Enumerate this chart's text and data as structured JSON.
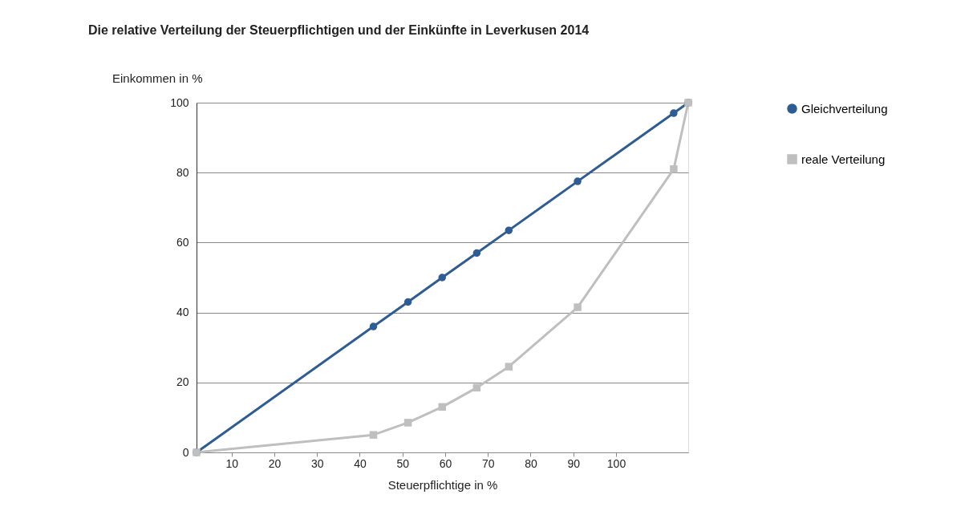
{
  "chart_data": {
    "type": "line",
    "title": "Die relative Verteilung der Steuerpflichtigen und der Einkünfte  in Leverkusen 2014",
    "xlabel": "Steuerpflichtige  in %",
    "ylabel": "Einkommen in %",
    "x": [
      1.8,
      43.2,
      51.3,
      59.3,
      67.4,
      74.9,
      91,
      113.5,
      116.9
    ],
    "series": [
      {
        "name": "Gleichverteilung",
        "color": "#2e5c94",
        "marker": "circle",
        "values": [
          0,
          36,
          43,
          50,
          57,
          63.5,
          77.5,
          97,
          100
        ]
      },
      {
        "name": "reale Verteilung",
        "color": "#bfbfbf",
        "marker": "square",
        "values": [
          0,
          5,
          8.5,
          13,
          18.5,
          24.5,
          41.5,
          81,
          100
        ]
      }
    ],
    "xlim": [
      1.8,
      116.9
    ],
    "xticks": [
      10,
      20,
      30,
      40,
      50,
      60,
      70,
      80,
      90,
      100
    ],
    "ylim": [
      0,
      100
    ],
    "yticks": [
      0,
      20,
      40,
      60,
      80,
      100
    ],
    "grid": "y",
    "legend": "right",
    "line_style": "solid"
  }
}
